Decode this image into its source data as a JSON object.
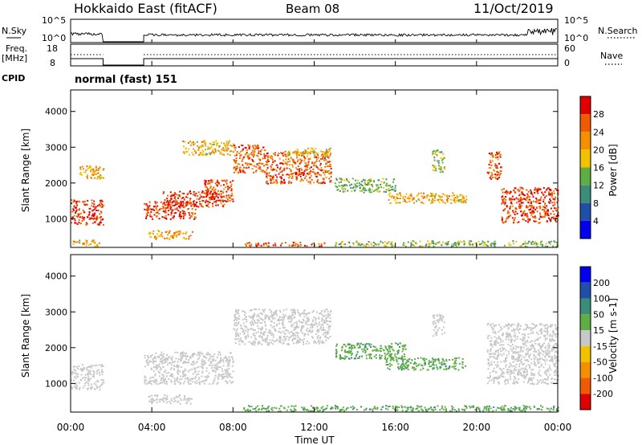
{
  "header": {
    "station": "Hokkaido East (fitACF)",
    "beam": "Beam 08",
    "date": "11/Oct/2019"
  },
  "nsky_panel": {
    "left_label": "N.Sky",
    "right_label": "N.Search",
    "ticks_left": [
      "10^5",
      "10^0"
    ],
    "ticks_right": [
      "10^5",
      "10^0"
    ]
  },
  "freq_panel": {
    "left_label_1": "Freq.",
    "left_label_2": "[MHz]",
    "right_label": "Nave",
    "ticks_left": [
      "18",
      "8"
    ],
    "ticks_right": [
      "60",
      "0"
    ]
  },
  "cpid": {
    "label": "CPID",
    "text": "normal (fast) 151"
  },
  "colors": {
    "power_scale": [
      "#0000ee",
      "#1f4fa8",
      "#3b8c78",
      "#5fae44",
      "#f2c200",
      "#f49000",
      "#f05a00",
      "#e00000"
    ],
    "velocity_scale": [
      "#e00000",
      "#f05a00",
      "#f49000",
      "#f2c200",
      "#c8c8c8",
      "#5fae44",
      "#3b8c78",
      "#1f4fa8",
      "#0000ee"
    ]
  },
  "chart_data": [
    {
      "type": "heatmap",
      "name": "Power",
      "ylabel": "Slant Range [km]",
      "yticks": [
        1000,
        2000,
        3000,
        4000
      ],
      "ylim": [
        200,
        4600
      ],
      "xlim_hours": [
        0,
        24
      ],
      "colorbar": {
        "label": "Power [dB]",
        "ticks": [
          4,
          8,
          12,
          16,
          20,
          24,
          28
        ],
        "range": [
          0,
          32
        ]
      },
      "bands": [
        {
          "t0": 0.0,
          "t1": 1.6,
          "r0": 850,
          "r1": 1550,
          "value": 28
        },
        {
          "t0": 0.4,
          "t1": 1.6,
          "r0": 2100,
          "r1": 2500,
          "value": 20
        },
        {
          "t0": 0.0,
          "t1": 1.4,
          "r0": 250,
          "r1": 420,
          "value": 20
        },
        {
          "t0": 3.6,
          "t1": 6.2,
          "r0": 1000,
          "r1": 1500,
          "value": 28
        },
        {
          "t0": 4.5,
          "t1": 7.6,
          "r0": 1350,
          "r1": 1800,
          "value": 28
        },
        {
          "t0": 6.5,
          "t1": 8.0,
          "r0": 1500,
          "r1": 2100,
          "value": 26
        },
        {
          "t0": 3.8,
          "t1": 6.0,
          "r0": 450,
          "r1": 700,
          "value": 22
        },
        {
          "t0": 5.5,
          "t1": 8.0,
          "r0": 2800,
          "r1": 3200,
          "value": 20
        },
        {
          "t0": 8.0,
          "t1": 9.6,
          "r0": 2300,
          "r1": 3100,
          "value": 26
        },
        {
          "t0": 9.6,
          "t1": 12.8,
          "r0": 2000,
          "r1": 2900,
          "value": 26
        },
        {
          "t0": 10.6,
          "t1": 12.8,
          "r0": 2750,
          "r1": 3000,
          "value": 18
        },
        {
          "t0": 8.5,
          "t1": 12.5,
          "r0": 250,
          "r1": 360,
          "value": 26
        },
        {
          "t0": 13.0,
          "t1": 16.0,
          "r0": 1750,
          "r1": 2150,
          "value": 14
        },
        {
          "t0": 15.5,
          "t1": 19.5,
          "r0": 1450,
          "r1": 1750,
          "value": 20
        },
        {
          "t0": 17.8,
          "t1": 18.4,
          "r0": 2300,
          "r1": 2950,
          "value": 16
        },
        {
          "t0": 20.5,
          "t1": 21.2,
          "r0": 2100,
          "r1": 2900,
          "value": 26
        },
        {
          "t0": 21.2,
          "t1": 24.0,
          "r0": 900,
          "r1": 1900,
          "value": 28
        },
        {
          "t0": 13.0,
          "t1": 24.0,
          "r0": 240,
          "r1": 400,
          "value": 14
        }
      ]
    },
    {
      "type": "heatmap",
      "name": "Velocity",
      "ylabel": "Slant Range [km]",
      "xlabel": "Time UT",
      "xticks": [
        "00:00",
        "04:00",
        "08:00",
        "12:00",
        "16:00",
        "20:00",
        "00:00"
      ],
      "yticks": [
        1000,
        2000,
        3000,
        4000
      ],
      "ylim": [
        200,
        4600
      ],
      "xlim_hours": [
        0,
        24
      ],
      "colorbar": {
        "label": "Velocity [m s-1]",
        "ticks": [
          200,
          100,
          50,
          15,
          -15,
          -50,
          -100,
          -200
        ]
      },
      "bands": [
        {
          "t0": 0.0,
          "t1": 1.6,
          "r0": 850,
          "r1": 1550,
          "value": 0
        },
        {
          "t0": 3.6,
          "t1": 8.0,
          "r0": 1000,
          "r1": 1900,
          "value": 0
        },
        {
          "t0": 8.0,
          "t1": 12.8,
          "r0": 2100,
          "r1": 3100,
          "value": 0
        },
        {
          "t0": 13.0,
          "t1": 16.5,
          "r0": 1700,
          "r1": 2150,
          "value": 40
        },
        {
          "t0": 15.5,
          "t1": 19.5,
          "r0": 1400,
          "r1": 1750,
          "value": 40
        },
        {
          "t0": 17.8,
          "t1": 18.4,
          "r0": 2300,
          "r1": 2950,
          "value": 0
        },
        {
          "t0": 20.5,
          "t1": 24.0,
          "r0": 1000,
          "r1": 2700,
          "value": 0
        },
        {
          "t0": 3.8,
          "t1": 6.0,
          "r0": 450,
          "r1": 700,
          "value": 0
        },
        {
          "t0": 8.5,
          "t1": 24.0,
          "r0": 240,
          "r1": 400,
          "value": 40
        }
      ]
    }
  ]
}
